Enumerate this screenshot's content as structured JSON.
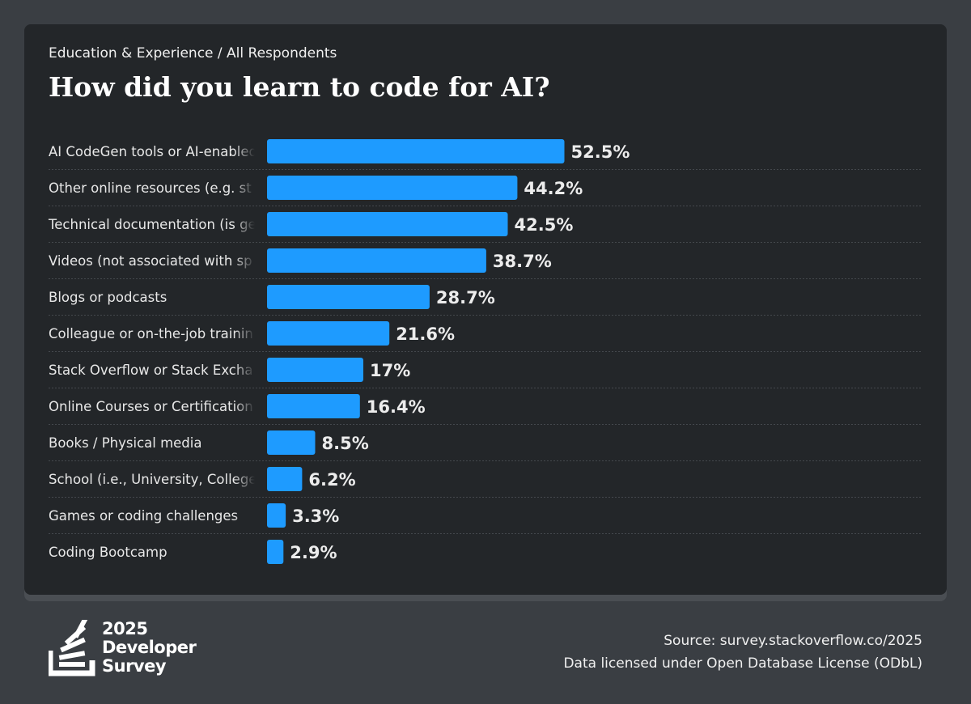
{
  "header": {
    "breadcrumb": "Education & Experience / All Respondents",
    "title": "How did you learn to code for AI?"
  },
  "footer": {
    "logo_year": "2025",
    "logo_line1": "Developer",
    "logo_line2": "Survey",
    "source": "Source: survey.stackoverflow.co/2025",
    "license": "Data licensed under Open Database License (ODbL)"
  },
  "colors": {
    "bar": "#1e9bff",
    "background": "#3a3e43",
    "card": "#232629",
    "divider": "#44484d"
  },
  "chart_data": {
    "type": "bar",
    "orientation": "horizontal",
    "title": "How did you learn to code for AI?",
    "categories": [
      "AI CodeGen tools or AI-enabled",
      "Other online resources (e.g. st",
      "Technical documentation (is ge",
      "Videos (not associated with sp",
      "Blogs or podcasts",
      "Colleague or on-the-job trainin",
      "Stack Overflow or Stack Excha",
      "Online Courses or Certification",
      "Books / Physical media",
      "School (i.e., University, College",
      "Games or coding challenges",
      "Coding Bootcamp"
    ],
    "values": [
      52.5,
      44.2,
      42.5,
      38.7,
      28.7,
      21.6,
      17,
      16.4,
      8.5,
      6.2,
      3.3,
      2.9
    ],
    "value_labels": [
      "52.5%",
      "44.2%",
      "42.5%",
      "38.7%",
      "28.7%",
      "21.6%",
      "17%",
      "16.4%",
      "8.5%",
      "6.2%",
      "3.3%",
      "2.9%"
    ],
    "xlim": [
      0,
      100
    ],
    "grid": false
  }
}
